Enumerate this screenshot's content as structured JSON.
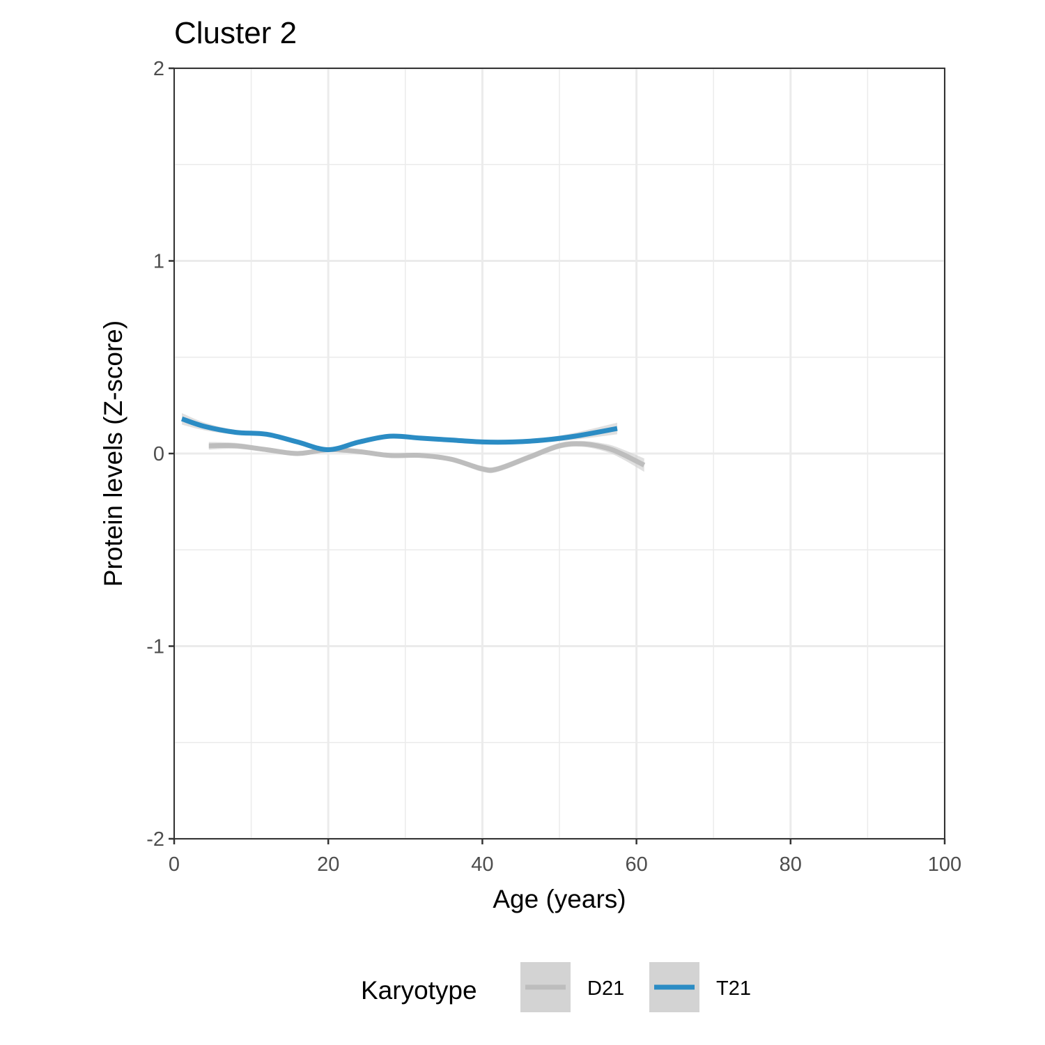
{
  "chart_data": {
    "type": "line",
    "title": "Cluster 2",
    "xlabel": "Age (years)",
    "ylabel": "Protein levels (Z-score)",
    "xlim": [
      0,
      100
    ],
    "ylim": [
      -2,
      2
    ],
    "x_ticks": [
      0,
      20,
      40,
      60,
      80,
      100
    ],
    "y_ticks": [
      -2,
      -1,
      0,
      1,
      2
    ],
    "x_tick_labels": [
      "0",
      "20",
      "40",
      "60",
      "80",
      "100"
    ],
    "y_tick_labels": [
      "-2",
      "-1",
      "0",
      "1",
      "2"
    ],
    "grid": true,
    "legend": {
      "title": "Karyotype",
      "position": "bottom"
    },
    "series": [
      {
        "name": "D21",
        "color": "#bdbdbd",
        "band_color": "#d3d3d3",
        "x": [
          4.5,
          8,
          12,
          16,
          20,
          24,
          28,
          32,
          36,
          40,
          42,
          46,
          50,
          53,
          56,
          58,
          61
        ],
        "y": [
          0.04,
          0.04,
          0.02,
          0.0,
          0.02,
          0.01,
          -0.01,
          -0.01,
          -0.03,
          -0.08,
          -0.08,
          -0.02,
          0.04,
          0.05,
          0.03,
          0.0,
          -0.06
        ],
        "band_halfwidth": [
          0.02,
          0.015,
          0.012,
          0.012,
          0.012,
          0.012,
          0.012,
          0.012,
          0.012,
          0.015,
          0.015,
          0.015,
          0.015,
          0.015,
          0.02,
          0.025,
          0.035
        ]
      },
      {
        "name": "T21",
        "color": "#2b8cc4",
        "band_color": "#d3d3d3",
        "x": [
          1,
          4,
          8,
          12,
          16,
          20,
          24,
          28,
          32,
          36,
          40,
          44,
          48,
          52,
          57.5
        ],
        "y": [
          0.18,
          0.14,
          0.11,
          0.1,
          0.06,
          0.02,
          0.06,
          0.09,
          0.08,
          0.07,
          0.06,
          0.06,
          0.07,
          0.09,
          0.13
        ],
        "band_halfwidth": [
          0.03,
          0.02,
          0.012,
          0.01,
          0.01,
          0.01,
          0.01,
          0.01,
          0.01,
          0.01,
          0.01,
          0.01,
          0.012,
          0.018,
          0.03
        ]
      }
    ]
  }
}
